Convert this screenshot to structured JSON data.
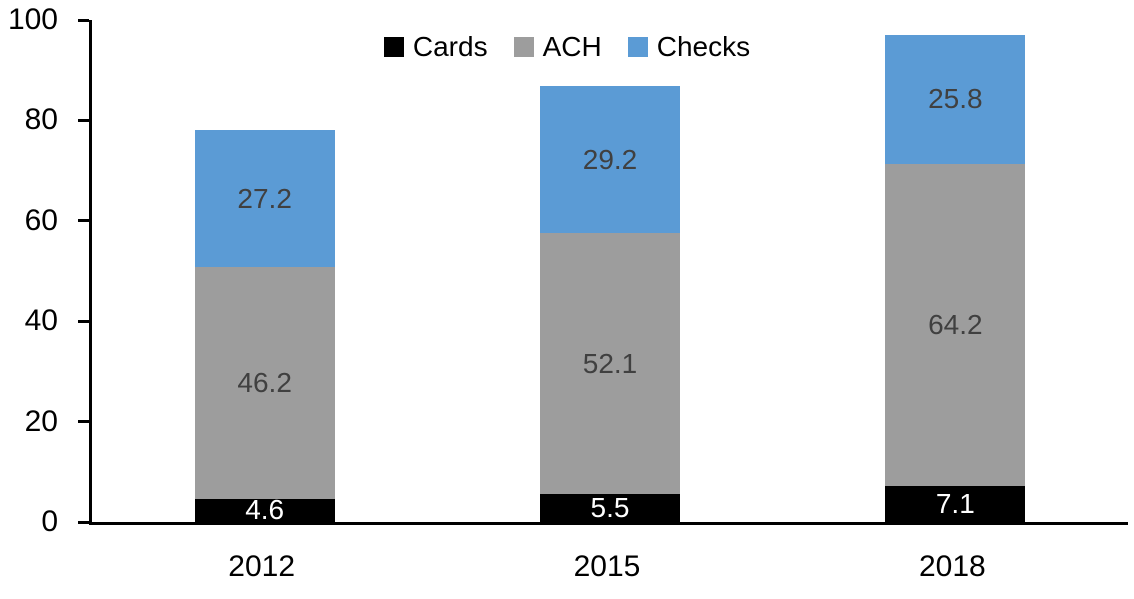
{
  "chart_data": {
    "type": "bar",
    "stacked": true,
    "title": "",
    "xlabel": "",
    "ylabel": "",
    "categories": [
      "2012",
      "2015",
      "2018"
    ],
    "series": [
      {
        "name": "Cards",
        "color": "#000000",
        "label_color": "#ffffff",
        "values": [
          4.6,
          5.5,
          7.1
        ]
      },
      {
        "name": "ACH",
        "color": "#9d9d9d",
        "label_color": "#404040",
        "values": [
          46.2,
          52.1,
          64.2
        ]
      },
      {
        "name": "Checks",
        "color": "#5b9bd5",
        "label_color": "#404040",
        "values": [
          27.2,
          29.2,
          25.8
        ]
      }
    ],
    "totals": [
      78.0,
      86.8,
      97.1
    ],
    "ylim": [
      0,
      100
    ],
    "y_ticks": [
      0,
      20,
      40,
      60,
      80,
      100
    ],
    "grid": false,
    "legend_position": "top-center",
    "axis_color": "#000000"
  }
}
